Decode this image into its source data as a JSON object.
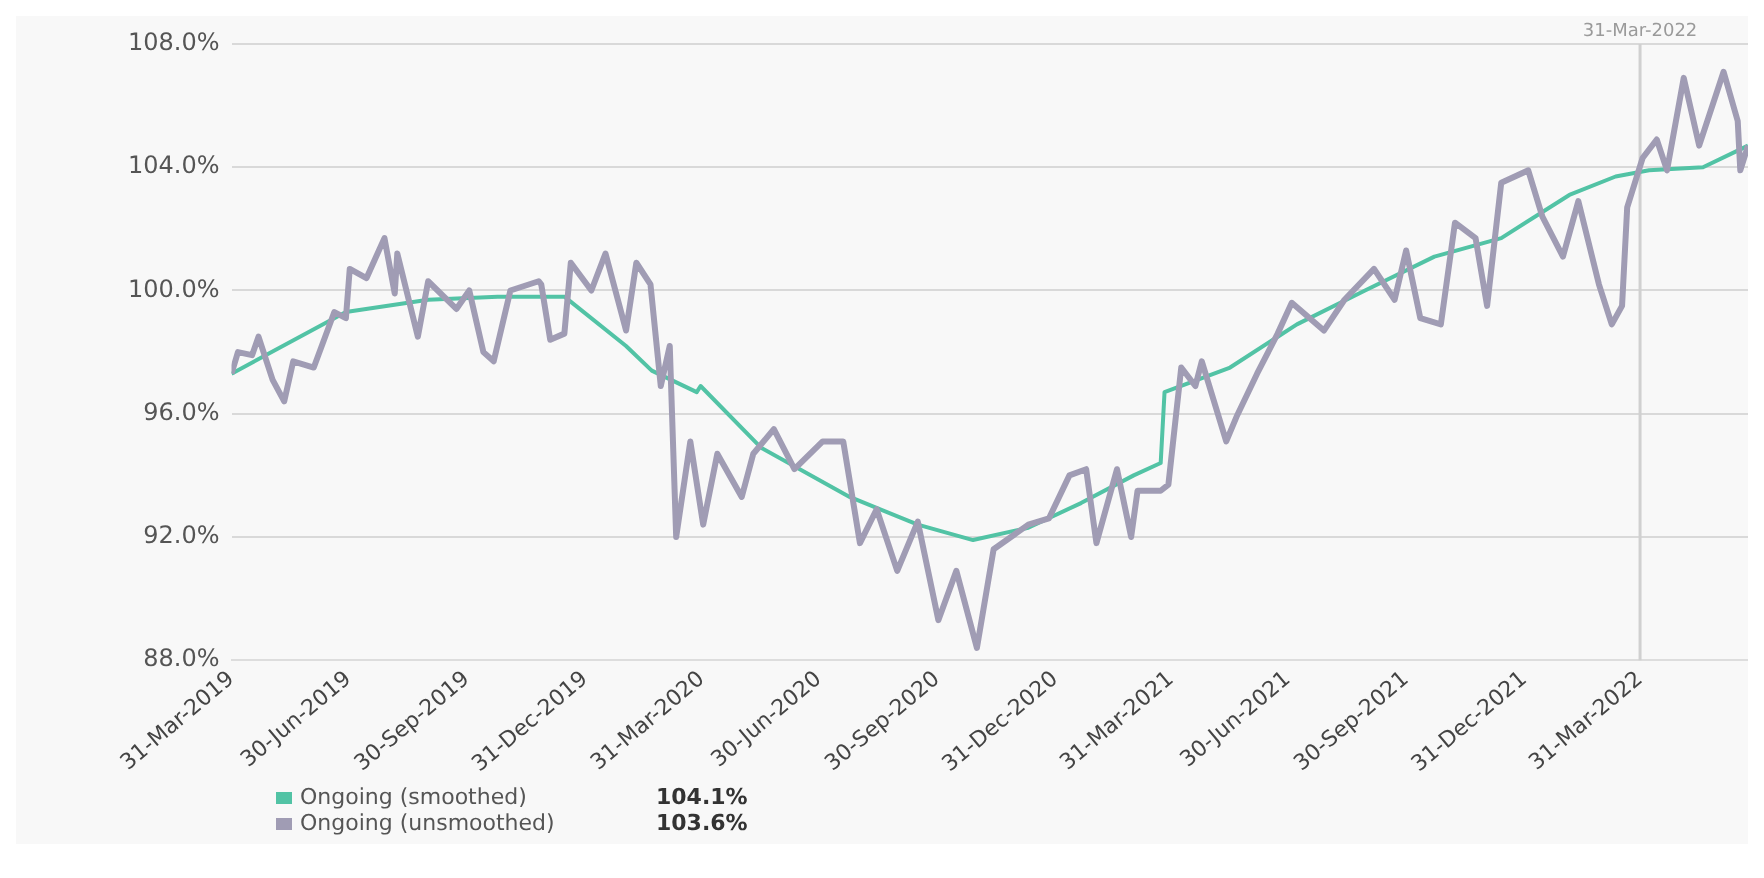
{
  "chart_data": {
    "type": "line",
    "series": [
      {
        "name": "Ongoing (smoothed)",
        "color": "#52c3a5",
        "x": [
          "2019-03-31",
          "2019-06-28",
          "2019-08-31",
          "2019-10-24",
          "2019-12-15",
          "2020-02-01",
          "2020-02-21",
          "2020-03-27",
          "2020-03-30",
          "2020-05-16",
          "2020-07-24",
          "2020-09-15",
          "2020-10-28",
          "2020-12-10",
          "2021-01-20",
          "2021-03-02",
          "2021-03-23",
          "2021-03-26",
          "2021-05-16",
          "2021-07-07",
          "2021-08-29",
          "2021-10-22",
          "2021-12-13",
          "2022-02-04",
          "2022-03-12",
          "2022-04-07",
          "2022-05-19",
          "2022-06-23"
        ],
        "values": [
          97.3,
          99.3,
          99.7,
          99.8,
          99.8,
          98.2,
          97.4,
          96.7,
          96.9,
          94.9,
          93.3,
          92.4,
          91.9,
          92.3,
          93.1,
          94.0,
          94.4,
          96.7,
          97.5,
          98.9,
          100.0,
          101.1,
          101.7,
          103.1,
          103.7,
          103.9,
          104.0,
          104.7
        ]
      },
      {
        "name": "Ongoing (unsmoothed)",
        "color": "#a09cb4",
        "x": [
          "2019-03-31",
          "2019-04-05",
          "2019-04-16",
          "2019-04-21",
          "2019-05-02",
          "2019-05-11",
          "2019-05-18",
          "2019-06-03",
          "2019-06-19",
          "2019-06-28",
          "2019-07-01",
          "2019-07-14",
          "2019-07-28",
          "2019-08-05",
          "2019-08-07",
          "2019-08-23",
          "2019-08-31",
          "2019-09-22",
          "2019-10-02",
          "2019-10-13",
          "2019-10-21",
          "2019-11-03",
          "2019-11-25",
          "2019-11-27",
          "2019-12-04",
          "2019-12-15",
          "2019-12-20",
          "2020-01-05",
          "2020-01-16",
          "2020-02-01",
          "2020-02-09",
          "2020-02-20",
          "2020-02-28",
          "2020-03-06",
          "2020-03-11",
          "2020-03-22",
          "2020-04-01",
          "2020-04-12",
          "2020-05-01",
          "2020-05-10",
          "2020-05-26",
          "2020-06-11",
          "2020-07-03",
          "2020-07-19",
          "2020-08-01",
          "2020-08-14",
          "2020-08-30",
          "2020-09-15",
          "2020-10-01",
          "2020-10-15",
          "2020-10-31",
          "2020-11-13",
          "2020-12-10",
          "2020-12-26",
          "2021-01-11",
          "2021-01-24",
          "2021-02-01",
          "2021-02-17",
          "2021-02-28",
          "2021-03-05",
          "2021-03-23",
          "2021-03-29",
          "2021-04-08",
          "2021-04-19",
          "2021-04-24",
          "2021-05-13",
          "2021-05-21",
          "2021-06-06",
          "2021-06-22",
          "2021-07-03",
          "2021-07-28",
          "2021-08-13",
          "2021-09-05",
          "2021-09-21",
          "2021-09-30",
          "2021-10-11",
          "2021-10-27",
          "2021-11-07",
          "2021-11-23",
          "2021-12-02",
          "2021-12-13",
          "2022-01-03",
          "2022-01-14",
          "2022-01-30",
          "2022-02-11",
          "2022-02-27",
          "2022-03-09",
          "2022-03-17",
          "2022-03-21",
          "2022-04-02",
          "2022-04-13",
          "2022-04-21",
          "2022-05-04",
          "2022-05-16",
          "2022-06-04",
          "2022-06-15",
          "2022-06-17",
          "2022-06-23"
        ],
        "values": [
          97.3,
          98.0,
          97.9,
          98.5,
          97.1,
          96.4,
          97.7,
          97.5,
          99.3,
          99.1,
          100.7,
          100.4,
          101.7,
          99.9,
          101.2,
          98.5,
          100.3,
          99.4,
          100.0,
          98.0,
          97.7,
          100.0,
          100.3,
          100.2,
          98.4,
          98.6,
          100.9,
          100.0,
          101.2,
          98.7,
          100.9,
          100.2,
          96.9,
          98.2,
          92.0,
          95.1,
          92.4,
          94.7,
          93.3,
          94.7,
          95.5,
          94.2,
          95.1,
          95.1,
          91.8,
          92.9,
          90.9,
          92.5,
          89.3,
          90.9,
          88.4,
          91.6,
          92.4,
          92.6,
          94.0,
          94.2,
          91.8,
          94.2,
          92.0,
          93.5,
          93.5,
          93.7,
          97.5,
          96.9,
          97.7,
          95.1,
          95.9,
          97.3,
          98.6,
          99.6,
          98.7,
          99.7,
          100.7,
          99.7,
          101.3,
          99.1,
          98.9,
          102.2,
          101.7,
          99.5,
          103.5,
          103.9,
          102.4,
          101.1,
          102.9,
          100.2,
          98.9,
          99.5,
          102.7,
          104.3,
          104.9,
          103.9,
          106.9,
          104.7,
          107.1,
          105.5,
          103.9,
          104.7
        ]
      }
    ],
    "xlim": [
      "2019-03-31",
      "2022-06-23"
    ],
    "xticks": [
      {
        "value": "2019-03-31",
        "label": "31-Mar-2019"
      },
      {
        "value": "2019-06-30",
        "label": "30-Jun-2019"
      },
      {
        "value": "2019-09-30",
        "label": "30-Sep-2019"
      },
      {
        "value": "2019-12-31",
        "label": "31-Dec-2019"
      },
      {
        "value": "2020-03-31",
        "label": "31-Mar-2020"
      },
      {
        "value": "2020-06-30",
        "label": "30-Jun-2020"
      },
      {
        "value": "2020-09-30",
        "label": "30-Sep-2020"
      },
      {
        "value": "2020-12-31",
        "label": "31-Dec-2020"
      },
      {
        "value": "2021-03-31",
        "label": "31-Mar-2021"
      },
      {
        "value": "2021-06-30",
        "label": "30-Jun-2021"
      },
      {
        "value": "2021-09-30",
        "label": "30-Sep-2021"
      },
      {
        "value": "2021-12-31",
        "label": "31-Dec-2021"
      },
      {
        "value": "2022-03-31",
        "label": "31-Mar-2022"
      }
    ],
    "ylim": [
      88,
      108
    ],
    "yticks": [
      {
        "value": 88,
        "label": "88.0%"
      },
      {
        "value": 92,
        "label": "92.0%"
      },
      {
        "value": 96,
        "label": "96.0%"
      },
      {
        "value": 100,
        "label": "100.0%"
      },
      {
        "value": 104,
        "label": "104.0%"
      },
      {
        "value": 108,
        "label": "108.0%"
      }
    ],
    "grid": "y",
    "ref_lines": [
      {
        "axis": "x",
        "value": "2022-03-31",
        "label": "31-Mar-2022",
        "color": "#d0d0d0"
      }
    ],
    "legend": "bottom left",
    "marker": "none",
    "line_style": "solid",
    "annotations": [
      "104.1%",
      "103.6%"
    ]
  }
}
